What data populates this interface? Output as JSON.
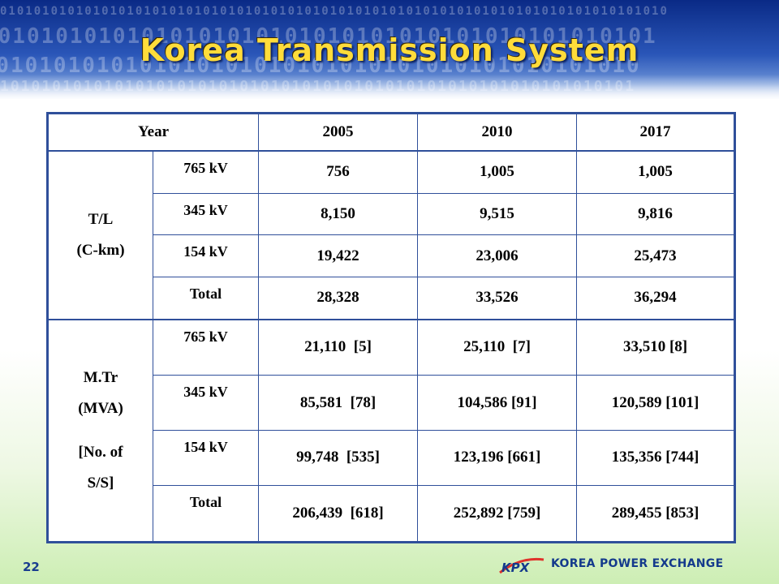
{
  "slide": {
    "title": "Korea Transmission System",
    "page_number": "22",
    "footer_brand": "KOREA POWER EXCHANGE",
    "logo_text": "KPX"
  },
  "table": {
    "header": [
      "Year",
      "2005",
      "2010",
      "2017"
    ],
    "groups": [
      {
        "label_lines": [
          "T/L",
          "(C-km)"
        ],
        "rows": [
          {
            "sub": "765 kV",
            "values": [
              "756",
              "1,005",
              "1,005"
            ]
          },
          {
            "sub": "345 kV",
            "values": [
              "8,150",
              "9,515",
              "9,816"
            ]
          },
          {
            "sub": "154 kV",
            "values": [
              "19,422",
              "23,006",
              "25,473"
            ]
          },
          {
            "sub": "Total",
            "values": [
              "28,328",
              "33,526",
              "36,294"
            ]
          }
        ]
      },
      {
        "label_lines": [
          "M.Tr",
          "(MVA)",
          "",
          "[No. of",
          "S/S]"
        ],
        "rows": [
          {
            "sub": "765 kV",
            "values": [
              "21,110  [5]",
              "25,110  [7]",
              "33,510 [8]"
            ]
          },
          {
            "sub": "345 kV",
            "values": [
              "85,581  [78]",
              "104,586 [91]",
              "120,589 [101]"
            ]
          },
          {
            "sub": "154 kV",
            "values": [
              "99,748  [535]",
              "123,196 [661]",
              "135,356 [744]"
            ]
          },
          {
            "sub": "Total",
            "values": [
              "206,439  [618]",
              "252,892 [759]",
              "289,455 [853]"
            ]
          }
        ]
      }
    ]
  }
}
